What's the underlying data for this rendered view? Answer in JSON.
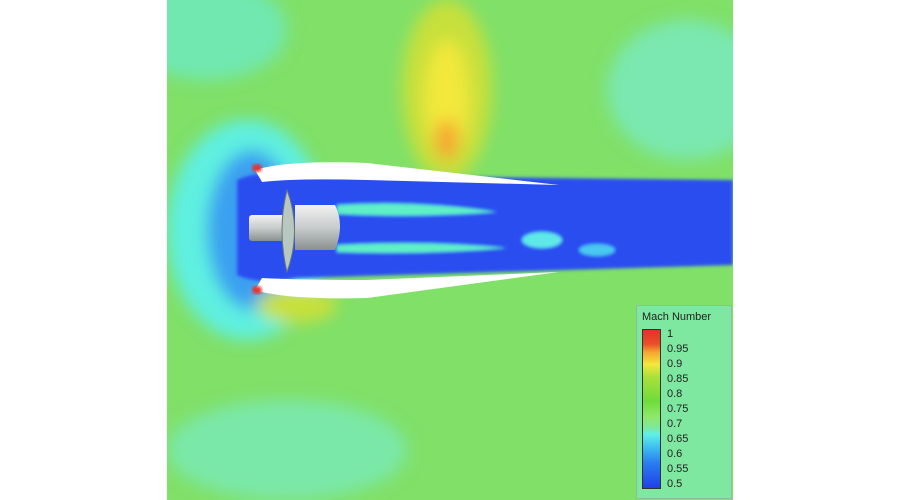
{
  "legend": {
    "title": "Mach Number",
    "labels": [
      "1",
      "0.95",
      "0.9",
      "0.85",
      "0.8",
      "0.75",
      "0.7",
      "0.65",
      "0.6",
      "0.55",
      "0.5"
    ]
  },
  "colors": {
    "freestream": "#7ee87a",
    "low_mach": "#2a4ef0",
    "high_mach": "#f3e83a",
    "max_mach": "#e8302a"
  }
}
